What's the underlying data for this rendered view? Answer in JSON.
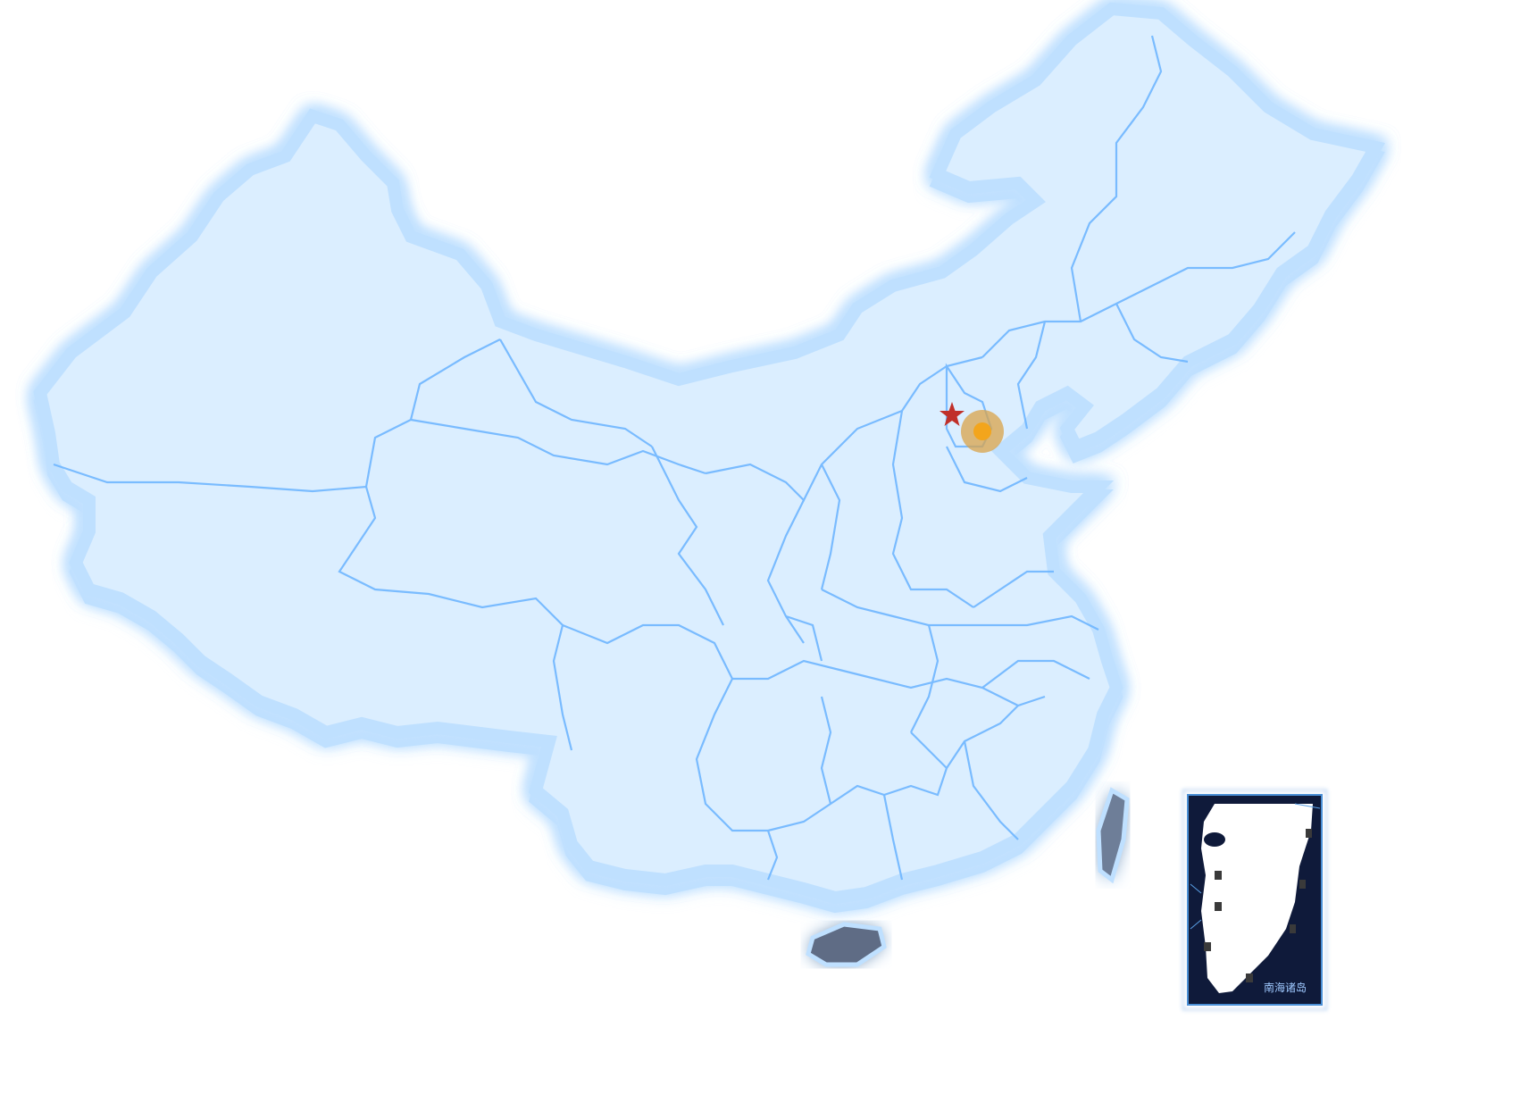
{
  "map": {
    "region": "China",
    "style": "3D glossy relief, blue gradient",
    "colors": {
      "land_top": "#3f73d6",
      "land_mid": "#3d5fa8",
      "land_bottom": "#5f6f8a",
      "border": "#6fb6ff",
      "glow": "#cfe6ff",
      "edge": "#a9d4ff"
    },
    "markers": [
      {
        "name": "capital-star",
        "shape": "star",
        "color": "#c0302a"
      },
      {
        "name": "highlight-point",
        "shape": "circle",
        "color": "#f3a51c",
        "halo_color": "#d9a34a"
      }
    ]
  },
  "inset": {
    "label": "南海诸岛",
    "colors": {
      "sea": "#0f1a3a",
      "land": "#ffffff",
      "frame": "#4a8fd6"
    }
  }
}
